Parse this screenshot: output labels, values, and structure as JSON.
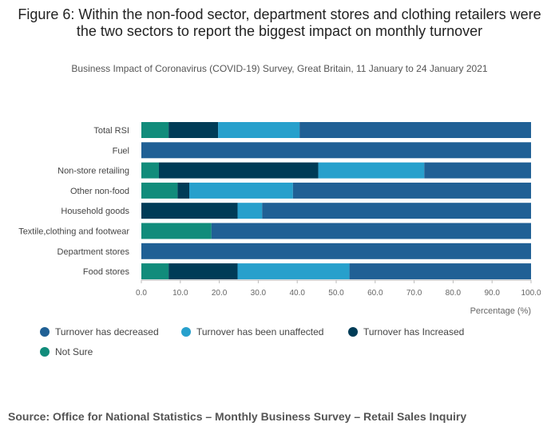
{
  "title": "Figure 6: Within the non-food sector, department stores and clothing retailers were the two sectors to report the biggest impact on monthly turnover",
  "subtitle": "Business Impact of Coronavirus (COVID-19) Survey, Great Britain, 11 January to 24 January 2021",
  "source": "Source: Office for National Statistics – Monthly Business Survey – Retail Sales Inquiry",
  "chart_data": {
    "type": "bar",
    "orientation": "horizontal",
    "stacked": true,
    "categories": [
      "Total RSI",
      "Fuel",
      "Non-store retailing",
      "Other non-food",
      "Household goods",
      "Textile,clothing and footwear",
      "Department stores",
      "Food stores"
    ],
    "series": [
      {
        "name": "Not Sure",
        "color": "#118c7b",
        "values": [
          7.0,
          0.0,
          4.5,
          9.3,
          0.0,
          18.0,
          0.0,
          7.0
        ]
      },
      {
        "name": "Turnover has Increased",
        "color": "#003c57",
        "values": [
          12.7,
          0.0,
          40.9,
          3.0,
          24.7,
          0.0,
          0.0,
          17.7
        ]
      },
      {
        "name": "Turnover has been unaffected",
        "color": "#27a0cc",
        "values": [
          20.9,
          0.0,
          27.2,
          26.6,
          6.3,
          0.0,
          0.0,
          28.7
        ]
      },
      {
        "name": "Turnover has decreased",
        "color": "#206095",
        "values": [
          59.4,
          100.0,
          27.4,
          61.1,
          69.0,
          82.0,
          100.0,
          46.6
        ]
      }
    ],
    "xlabel": "Percentage (%)",
    "xlim": [
      0,
      100
    ],
    "xticks": [
      "0.0",
      "10.0",
      "20.0",
      "30.0",
      "40.0",
      "50.0",
      "60.0",
      "70.0",
      "80.0",
      "90.0",
      "100.0"
    ],
    "legend": [
      {
        "name": "Turnover has decreased",
        "color": "#206095"
      },
      {
        "name": "Turnover has been unaffected",
        "color": "#27a0cc"
      },
      {
        "name": "Turnover has Increased",
        "color": "#003c57"
      },
      {
        "name": "Not Sure",
        "color": "#118c7b"
      }
    ],
    "legend_position": "bottom-left"
  }
}
